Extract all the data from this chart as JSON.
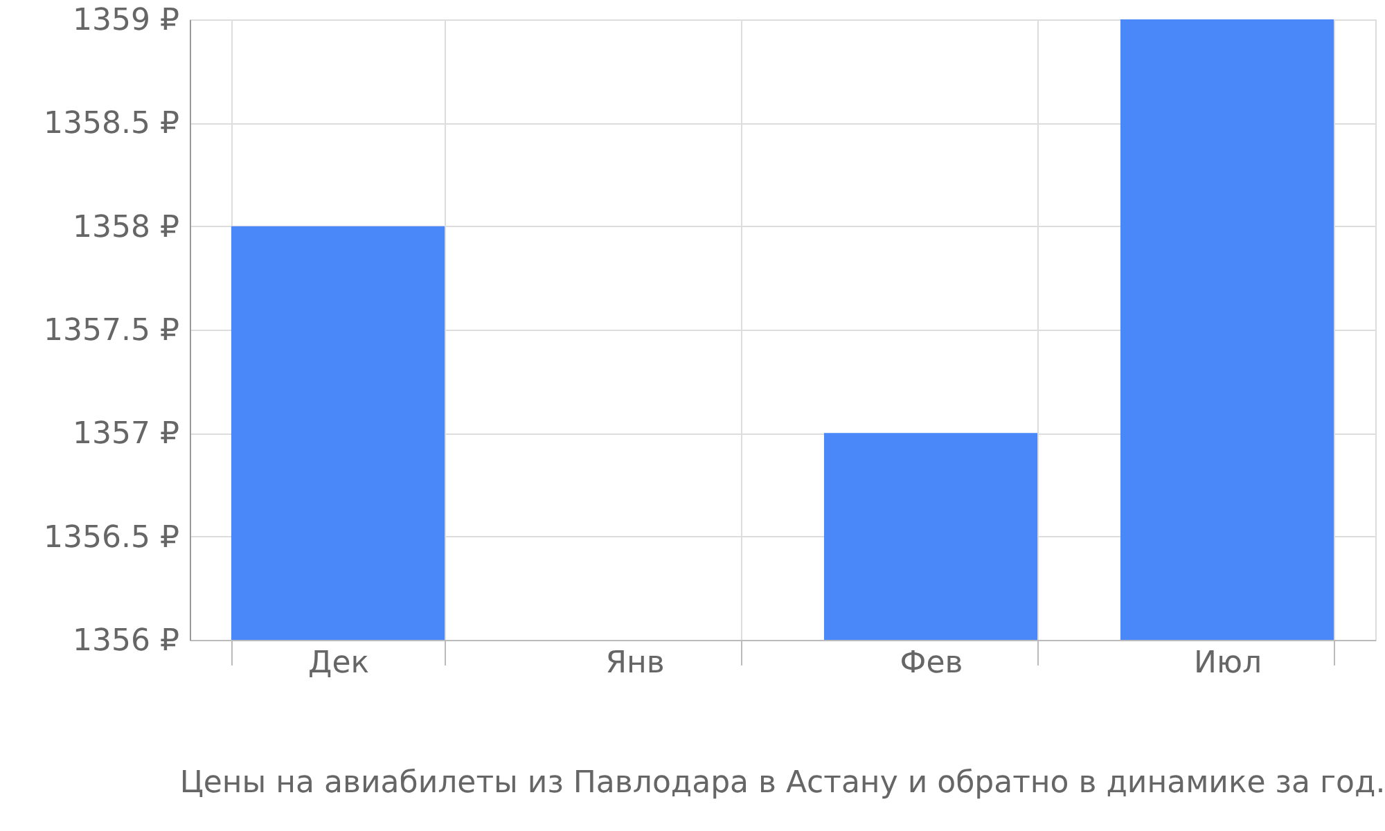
{
  "chart_data": {
    "type": "bar",
    "categories": [
      "Дек",
      "Янв",
      "Фев",
      "Июл"
    ],
    "series": [
      {
        "color": "#4a88fa",
        "values": [
          1358,
          null,
          1357,
          1359
        ]
      }
    ],
    "ylim": [
      1356,
      1359
    ],
    "yticks": [
      {
        "value": 1356,
        "label": "1356 ₽"
      },
      {
        "value": 1356.5,
        "label": "1356.5 ₽"
      },
      {
        "value": 1357,
        "label": "1357 ₽"
      },
      {
        "value": 1357.5,
        "label": "1357.5 ₽"
      },
      {
        "value": 1358,
        "label": "1358 ₽"
      },
      {
        "value": 1358.5,
        "label": "1358.5 ₽"
      },
      {
        "value": 1359,
        "label": "1359 ₽"
      }
    ],
    "grid": true,
    "legend": false,
    "annotations": [
      "Цены на авиабилеты из Павлодара в Астану и обратно в динамике за год."
    ]
  }
}
